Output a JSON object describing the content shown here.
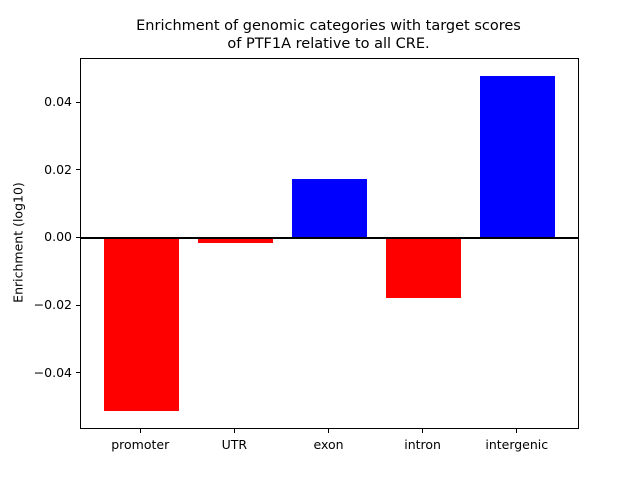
{
  "figure": {
    "background_color": "#ffffff",
    "text_color": "#000000"
  },
  "chart_data": {
    "type": "bar",
    "title": "Enrichment of genomic categories with target scores\nof PTF1A relative to all CRE.",
    "xlabel": "",
    "ylabel": "Enrichment (log10)",
    "categories": [
      "promoter",
      "UTR",
      "exon",
      "intron",
      "intergenic"
    ],
    "values": [
      -0.051,
      -0.0013,
      0.0175,
      -0.0175,
      0.048
    ],
    "positive_color": "#0000ff",
    "negative_color": "#ff0000",
    "bar_colors": [
      "#ff0000",
      "#ff0000",
      "#0000ff",
      "#ff0000",
      "#0000ff"
    ],
    "ylim": [
      -0.056,
      0.053
    ],
    "yticks": [
      -0.04,
      -0.02,
      0.0,
      0.02,
      0.04
    ],
    "ytick_labels": [
      "−0.04",
      "−0.02",
      "0.00",
      "0.02",
      "0.04"
    ],
    "bar_width_frac": 0.8,
    "zero_line": true,
    "grid": false,
    "legend": null,
    "frame_on": true
  }
}
